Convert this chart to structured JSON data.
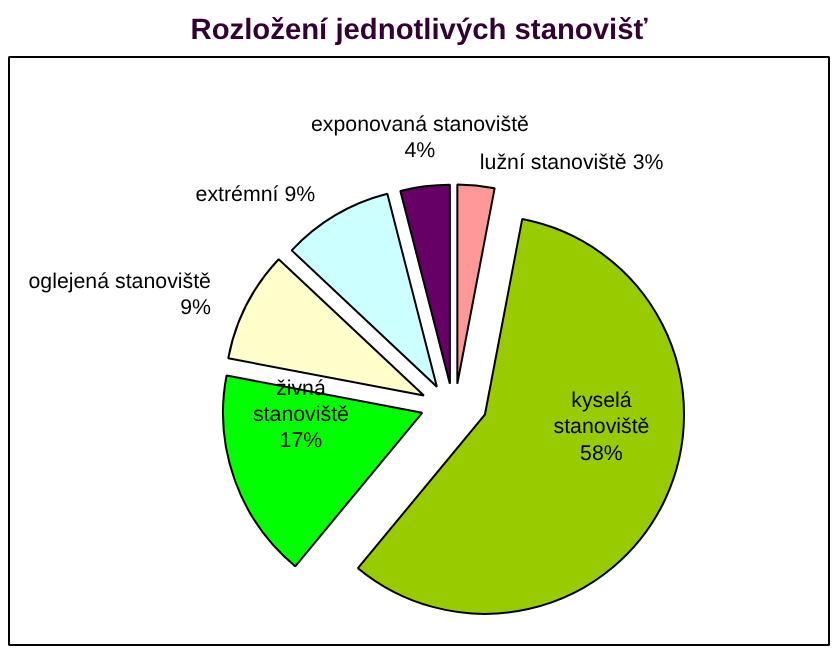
{
  "chart_data": {
    "type": "pie",
    "title": "Rozložení jednotlivých stanovišť",
    "categories": [
      "lužní stanoviště",
      "kyselá stanoviště",
      "živná stanoviště",
      "oglejená stanoviště",
      "extrémní",
      "exponovaná stanoviště"
    ],
    "values": [
      3,
      58,
      17,
      9,
      9,
      4
    ],
    "value_labels": [
      "3%",
      "58%",
      "17%",
      "9%",
      "9%",
      "4%"
    ],
    "colors": [
      "#ff9999",
      "#99cc00",
      "#00ff00",
      "#ffffcc",
      "#ccffff",
      "#660066"
    ]
  }
}
